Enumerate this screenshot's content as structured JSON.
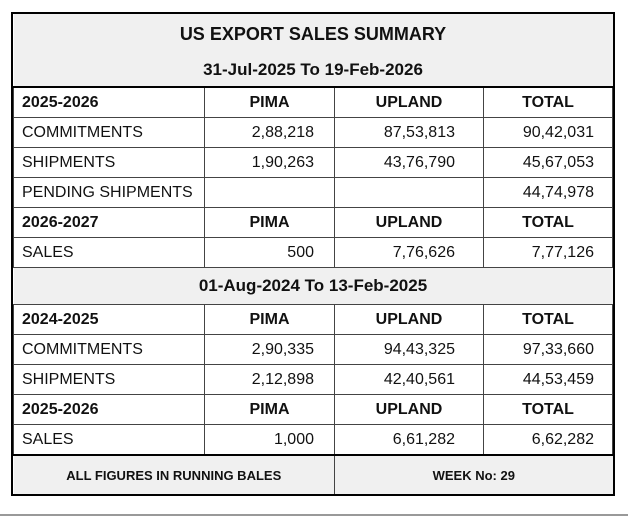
{
  "title": "US EXPORT SALES SUMMARY",
  "period_current": "31-Jul-2025 To 19-Feb-2026",
  "period_previous": "01-Aug-2024 To 13-Feb-2025",
  "columns": {
    "pima": "PIMA",
    "upland": "UPLAND",
    "total": "TOTAL"
  },
  "current": {
    "season": "2025-2026",
    "rows": [
      {
        "label": "COMMITMENTS",
        "pima": "2,88,218",
        "upland": "87,53,813",
        "total": "90,42,031"
      },
      {
        "label": "SHIPMENTS",
        "pima": "1,90,263",
        "upland": "43,76,790",
        "total": "45,67,053"
      },
      {
        "label": "PENDING SHIPMENTS",
        "pima": "",
        "upland": "",
        "total": "44,74,978"
      }
    ],
    "next_season": "2026-2027",
    "next_sales": {
      "label": "SALES",
      "pima": "500",
      "upland": "7,76,626",
      "total": "7,77,126"
    }
  },
  "previous": {
    "season": "2024-2025",
    "rows": [
      {
        "label": "COMMITMENTS",
        "pima": "2,90,335",
        "upland": "94,43,325",
        "total": "97,33,660"
      },
      {
        "label": "SHIPMENTS",
        "pima": "2,12,898",
        "upland": "42,40,561",
        "total": "44,53,459"
      }
    ],
    "next_season": "2025-2026",
    "next_sales": {
      "label": "SALES",
      "pima": "1,000",
      "upland": "6,61,282",
      "total": "6,62,282"
    }
  },
  "footer": {
    "units": "ALL FIGURES IN RUNNING BALES",
    "week": "WEEK No: 29"
  }
}
